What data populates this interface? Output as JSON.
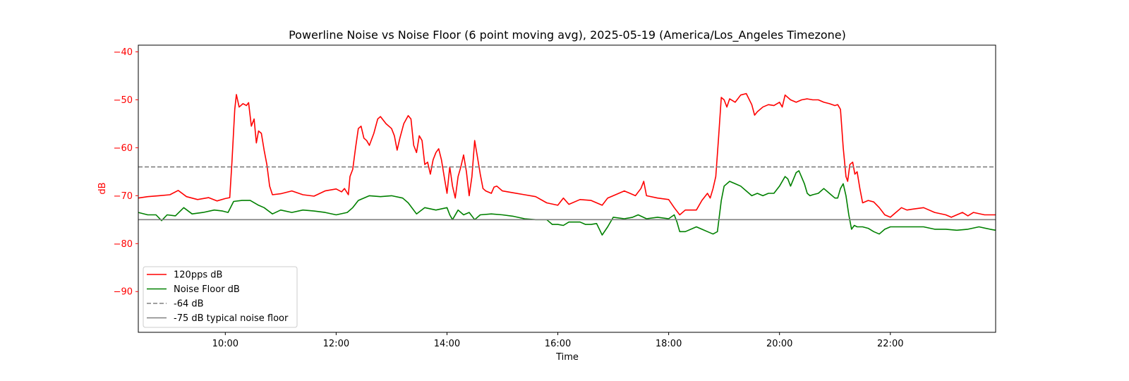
{
  "chart_data": {
    "type": "line",
    "title": "Powerline Noise vs Noise Floor (6 point moving avg), 2025-05-19 (America/Los_Angeles Timezone)",
    "xlabel": "Time",
    "ylabel": "dB",
    "ylabel_color": "#ff0000",
    "x_unit": "hours",
    "xlim": [
      8.43,
      23.9
    ],
    "ylim": [
      -98.5,
      -38.6
    ],
    "x_ticks": [
      10,
      12,
      14,
      16,
      18,
      20,
      22
    ],
    "x_tick_labels": [
      "10:00",
      "12:00",
      "14:00",
      "16:00",
      "18:00",
      "20:00",
      "22:00"
    ],
    "y_ticks": [
      -90,
      -80,
      -70,
      -60,
      -50,
      -40
    ],
    "y_tick_labels": [
      "−90",
      "−80",
      "−70",
      "−60",
      "−50",
      "−40"
    ],
    "grid": false,
    "legend_position": "lower-left",
    "series": [
      {
        "name": "120pps dB",
        "color": "#ff0000",
        "style": "solid",
        "points": [
          [
            8.43,
            -70.5
          ],
          [
            8.6,
            -70.2
          ],
          [
            8.8,
            -70.0
          ],
          [
            9.0,
            -69.8
          ],
          [
            9.15,
            -68.9
          ],
          [
            9.3,
            -70.2
          ],
          [
            9.5,
            -70.8
          ],
          [
            9.7,
            -70.4
          ],
          [
            9.85,
            -71.1
          ],
          [
            10.0,
            -70.6
          ],
          [
            10.08,
            -70.4
          ],
          [
            10.12,
            -63.0
          ],
          [
            10.17,
            -52.0
          ],
          [
            10.2,
            -48.9
          ],
          [
            10.25,
            -51.5
          ],
          [
            10.32,
            -50.8
          ],
          [
            10.38,
            -51.2
          ],
          [
            10.42,
            -50.6
          ],
          [
            10.47,
            -55.5
          ],
          [
            10.52,
            -54.0
          ],
          [
            10.56,
            -59.0
          ],
          [
            10.6,
            -56.5
          ],
          [
            10.65,
            -57.0
          ],
          [
            10.7,
            -60.5
          ],
          [
            10.75,
            -63.5
          ],
          [
            10.8,
            -68.0
          ],
          [
            10.85,
            -69.8
          ],
          [
            11.0,
            -69.6
          ],
          [
            11.2,
            -69.0
          ],
          [
            11.4,
            -69.8
          ],
          [
            11.6,
            -70.1
          ],
          [
            11.8,
            -69.0
          ],
          [
            12.0,
            -68.6
          ],
          [
            12.1,
            -69.2
          ],
          [
            12.15,
            -68.5
          ],
          [
            12.22,
            -69.8
          ],
          [
            12.25,
            -66.0
          ],
          [
            12.3,
            -64.5
          ],
          [
            12.35,
            -60.0
          ],
          [
            12.4,
            -56.0
          ],
          [
            12.45,
            -55.5
          ],
          [
            12.5,
            -58.0
          ],
          [
            12.55,
            -58.5
          ],
          [
            12.6,
            -59.5
          ],
          [
            12.68,
            -57.0
          ],
          [
            12.75,
            -54.0
          ],
          [
            12.8,
            -53.5
          ],
          [
            12.9,
            -55.0
          ],
          [
            13.0,
            -56.0
          ],
          [
            13.05,
            -57.5
          ],
          [
            13.1,
            -60.5
          ],
          [
            13.15,
            -58.0
          ],
          [
            13.22,
            -55.0
          ],
          [
            13.3,
            -53.3
          ],
          [
            13.35,
            -54.0
          ],
          [
            13.4,
            -59.5
          ],
          [
            13.45,
            -61.0
          ],
          [
            13.5,
            -57.5
          ],
          [
            13.55,
            -58.5
          ],
          [
            13.6,
            -63.5
          ],
          [
            13.65,
            -63.0
          ],
          [
            13.7,
            -65.5
          ],
          [
            13.75,
            -62.5
          ],
          [
            13.8,
            -61.0
          ],
          [
            13.85,
            -60.2
          ],
          [
            13.9,
            -62.5
          ],
          [
            13.95,
            -66.0
          ],
          [
            14.0,
            -69.5
          ],
          [
            14.05,
            -64.0
          ],
          [
            14.1,
            -68.0
          ],
          [
            14.15,
            -70.5
          ],
          [
            14.2,
            -66.0
          ],
          [
            14.25,
            -64.0
          ],
          [
            14.3,
            -61.5
          ],
          [
            14.35,
            -65.0
          ],
          [
            14.4,
            -70.0
          ],
          [
            14.45,
            -66.0
          ],
          [
            14.5,
            -58.5
          ],
          [
            14.55,
            -62.0
          ],
          [
            14.6,
            -65.5
          ],
          [
            14.65,
            -68.5
          ],
          [
            14.7,
            -69.0
          ],
          [
            14.8,
            -69.5
          ],
          [
            14.85,
            -68.2
          ],
          [
            14.9,
            -68.0
          ],
          [
            15.0,
            -69.0
          ],
          [
            15.2,
            -69.4
          ],
          [
            15.4,
            -69.8
          ],
          [
            15.6,
            -70.2
          ],
          [
            15.8,
            -71.5
          ],
          [
            16.0,
            -72.0
          ],
          [
            16.1,
            -70.5
          ],
          [
            16.2,
            -71.8
          ],
          [
            16.4,
            -70.8
          ],
          [
            16.6,
            -71.0
          ],
          [
            16.8,
            -72.0
          ],
          [
            16.9,
            -70.5
          ],
          [
            17.0,
            -70.0
          ],
          [
            17.2,
            -69.0
          ],
          [
            17.4,
            -70.0
          ],
          [
            17.5,
            -68.5
          ],
          [
            17.55,
            -67.0
          ],
          [
            17.6,
            -70.0
          ],
          [
            17.8,
            -70.5
          ],
          [
            18.0,
            -70.8
          ],
          [
            18.1,
            -72.5
          ],
          [
            18.2,
            -74.0
          ],
          [
            18.3,
            -73.0
          ],
          [
            18.5,
            -73.0
          ],
          [
            18.6,
            -71.0
          ],
          [
            18.7,
            -69.5
          ],
          [
            18.75,
            -70.5
          ],
          [
            18.8,
            -68.5
          ],
          [
            18.85,
            -66.0
          ],
          [
            18.9,
            -58.0
          ],
          [
            18.95,
            -49.5
          ],
          [
            19.0,
            -50.0
          ],
          [
            19.05,
            -51.5
          ],
          [
            19.1,
            -49.8
          ],
          [
            19.2,
            -50.5
          ],
          [
            19.3,
            -49.0
          ],
          [
            19.4,
            -48.7
          ],
          [
            19.5,
            -51.0
          ],
          [
            19.55,
            -53.2
          ],
          [
            19.6,
            -52.5
          ],
          [
            19.7,
            -51.5
          ],
          [
            19.8,
            -51.0
          ],
          [
            19.9,
            -51.2
          ],
          [
            20.0,
            -50.5
          ],
          [
            20.05,
            -51.5
          ],
          [
            20.1,
            -49.0
          ],
          [
            20.2,
            -50.0
          ],
          [
            20.3,
            -50.5
          ],
          [
            20.4,
            -50.0
          ],
          [
            20.5,
            -49.8
          ],
          [
            20.6,
            -50.0
          ],
          [
            20.7,
            -50.0
          ],
          [
            20.8,
            -50.5
          ],
          [
            20.9,
            -50.8
          ],
          [
            21.0,
            -51.2
          ],
          [
            21.05,
            -51.0
          ],
          [
            21.1,
            -52.0
          ],
          [
            21.15,
            -60.0
          ],
          [
            21.2,
            -66.0
          ],
          [
            21.23,
            -67.0
          ],
          [
            21.27,
            -63.5
          ],
          [
            21.32,
            -63.0
          ],
          [
            21.36,
            -65.5
          ],
          [
            21.4,
            -65.0
          ],
          [
            21.45,
            -68.5
          ],
          [
            21.5,
            -71.5
          ],
          [
            21.6,
            -71.0
          ],
          [
            21.7,
            -71.3
          ],
          [
            21.8,
            -72.5
          ],
          [
            21.9,
            -74.0
          ],
          [
            22.0,
            -74.5
          ],
          [
            22.1,
            -73.5
          ],
          [
            22.2,
            -72.5
          ],
          [
            22.3,
            -73.0
          ],
          [
            22.4,
            -72.8
          ],
          [
            22.6,
            -72.5
          ],
          [
            22.8,
            -73.5
          ],
          [
            23.0,
            -74.0
          ],
          [
            23.1,
            -74.5
          ],
          [
            23.2,
            -74.0
          ],
          [
            23.3,
            -73.5
          ],
          [
            23.4,
            -74.2
          ],
          [
            23.5,
            -73.5
          ],
          [
            23.7,
            -74.0
          ],
          [
            23.9,
            -74.0
          ]
        ]
      },
      {
        "name": "Noise Floor dB",
        "color": "#008000",
        "style": "solid",
        "points": [
          [
            8.43,
            -73.5
          ],
          [
            8.6,
            -74.0
          ],
          [
            8.75,
            -74.0
          ],
          [
            8.85,
            -75.2
          ],
          [
            8.95,
            -74.0
          ],
          [
            9.1,
            -74.2
          ],
          [
            9.25,
            -72.5
          ],
          [
            9.4,
            -73.8
          ],
          [
            9.6,
            -73.5
          ],
          [
            9.8,
            -73.0
          ],
          [
            9.95,
            -73.2
          ],
          [
            10.05,
            -73.5
          ],
          [
            10.15,
            -71.2
          ],
          [
            10.3,
            -71.0
          ],
          [
            10.45,
            -71.0
          ],
          [
            10.6,
            -72.0
          ],
          [
            10.7,
            -72.5
          ],
          [
            10.85,
            -73.8
          ],
          [
            11.0,
            -73.0
          ],
          [
            11.2,
            -73.5
          ],
          [
            11.4,
            -73.0
          ],
          [
            11.6,
            -73.2
          ],
          [
            11.8,
            -73.5
          ],
          [
            12.0,
            -74.0
          ],
          [
            12.2,
            -73.5
          ],
          [
            12.3,
            -72.5
          ],
          [
            12.4,
            -71.0
          ],
          [
            12.6,
            -70.0
          ],
          [
            12.8,
            -70.2
          ],
          [
            13.0,
            -70.0
          ],
          [
            13.2,
            -70.5
          ],
          [
            13.3,
            -71.5
          ],
          [
            13.45,
            -73.8
          ],
          [
            13.6,
            -72.5
          ],
          [
            13.8,
            -73.0
          ],
          [
            14.0,
            -72.5
          ],
          [
            14.05,
            -74.0
          ],
          [
            14.1,
            -75.0
          ],
          [
            14.2,
            -73.0
          ],
          [
            14.3,
            -74.0
          ],
          [
            14.4,
            -73.5
          ],
          [
            14.5,
            -75.0
          ],
          [
            14.6,
            -74.0
          ],
          [
            14.8,
            -73.8
          ],
          [
            15.0,
            -74.0
          ],
          [
            15.2,
            -74.3
          ],
          [
            15.4,
            -74.8
          ],
          [
            15.6,
            -75.0
          ],
          [
            15.8,
            -75.0
          ],
          [
            15.9,
            -76.0
          ],
          [
            16.0,
            -76.0
          ],
          [
            16.1,
            -76.2
          ],
          [
            16.2,
            -75.5
          ],
          [
            16.4,
            -75.5
          ],
          [
            16.5,
            -76.0
          ],
          [
            16.6,
            -76.0
          ],
          [
            16.7,
            -75.8
          ],
          [
            16.8,
            -78.2
          ],
          [
            16.9,
            -76.5
          ],
          [
            17.0,
            -74.5
          ],
          [
            17.2,
            -74.8
          ],
          [
            17.35,
            -74.5
          ],
          [
            17.45,
            -74.0
          ],
          [
            17.6,
            -74.8
          ],
          [
            17.8,
            -74.5
          ],
          [
            18.0,
            -74.8
          ],
          [
            18.1,
            -74.0
          ],
          [
            18.15,
            -75.5
          ],
          [
            18.2,
            -77.5
          ],
          [
            18.3,
            -77.5
          ],
          [
            18.5,
            -76.5
          ],
          [
            18.6,
            -77.0
          ],
          [
            18.7,
            -77.5
          ],
          [
            18.8,
            -78.0
          ],
          [
            18.88,
            -77.5
          ],
          [
            18.95,
            -71.0
          ],
          [
            19.0,
            -68.0
          ],
          [
            19.1,
            -67.0
          ],
          [
            19.2,
            -67.5
          ],
          [
            19.3,
            -68.0
          ],
          [
            19.4,
            -69.0
          ],
          [
            19.5,
            -70.0
          ],
          [
            19.6,
            -69.5
          ],
          [
            19.7,
            -70.0
          ],
          [
            19.8,
            -69.5
          ],
          [
            19.9,
            -69.5
          ],
          [
            20.0,
            -68.0
          ],
          [
            20.1,
            -66.0
          ],
          [
            20.15,
            -66.5
          ],
          [
            20.2,
            -68.0
          ],
          [
            20.3,
            -65.2
          ],
          [
            20.35,
            -64.8
          ],
          [
            20.45,
            -67.5
          ],
          [
            20.5,
            -69.5
          ],
          [
            20.55,
            -70.0
          ],
          [
            20.6,
            -69.8
          ],
          [
            20.7,
            -69.5
          ],
          [
            20.8,
            -68.5
          ],
          [
            20.9,
            -69.5
          ],
          [
            21.0,
            -70.5
          ],
          [
            21.05,
            -70.5
          ],
          [
            21.1,
            -68.5
          ],
          [
            21.15,
            -67.5
          ],
          [
            21.2,
            -70.0
          ],
          [
            21.25,
            -74.0
          ],
          [
            21.3,
            -77.0
          ],
          [
            21.35,
            -76.2
          ],
          [
            21.4,
            -76.5
          ],
          [
            21.5,
            -76.5
          ],
          [
            21.6,
            -76.8
          ],
          [
            21.7,
            -77.5
          ],
          [
            21.8,
            -78.0
          ],
          [
            21.9,
            -77.0
          ],
          [
            22.0,
            -76.5
          ],
          [
            22.2,
            -76.5
          ],
          [
            22.4,
            -76.5
          ],
          [
            22.6,
            -76.5
          ],
          [
            22.8,
            -77.0
          ],
          [
            23.0,
            -77.0
          ],
          [
            23.2,
            -77.2
          ],
          [
            23.4,
            -77.0
          ],
          [
            23.6,
            -76.5
          ],
          [
            23.8,
            -77.0
          ],
          [
            23.9,
            -77.2
          ]
        ]
      },
      {
        "name": "-64 dB",
        "color": "#808080",
        "style": "dashed",
        "points": [
          [
            8.43,
            -64
          ],
          [
            23.9,
            -64
          ]
        ]
      },
      {
        "name": "-75 dB typical noise floor",
        "color": "#808080",
        "style": "solid",
        "points": [
          [
            8.43,
            -75
          ],
          [
            23.9,
            -75
          ]
        ]
      }
    ]
  }
}
